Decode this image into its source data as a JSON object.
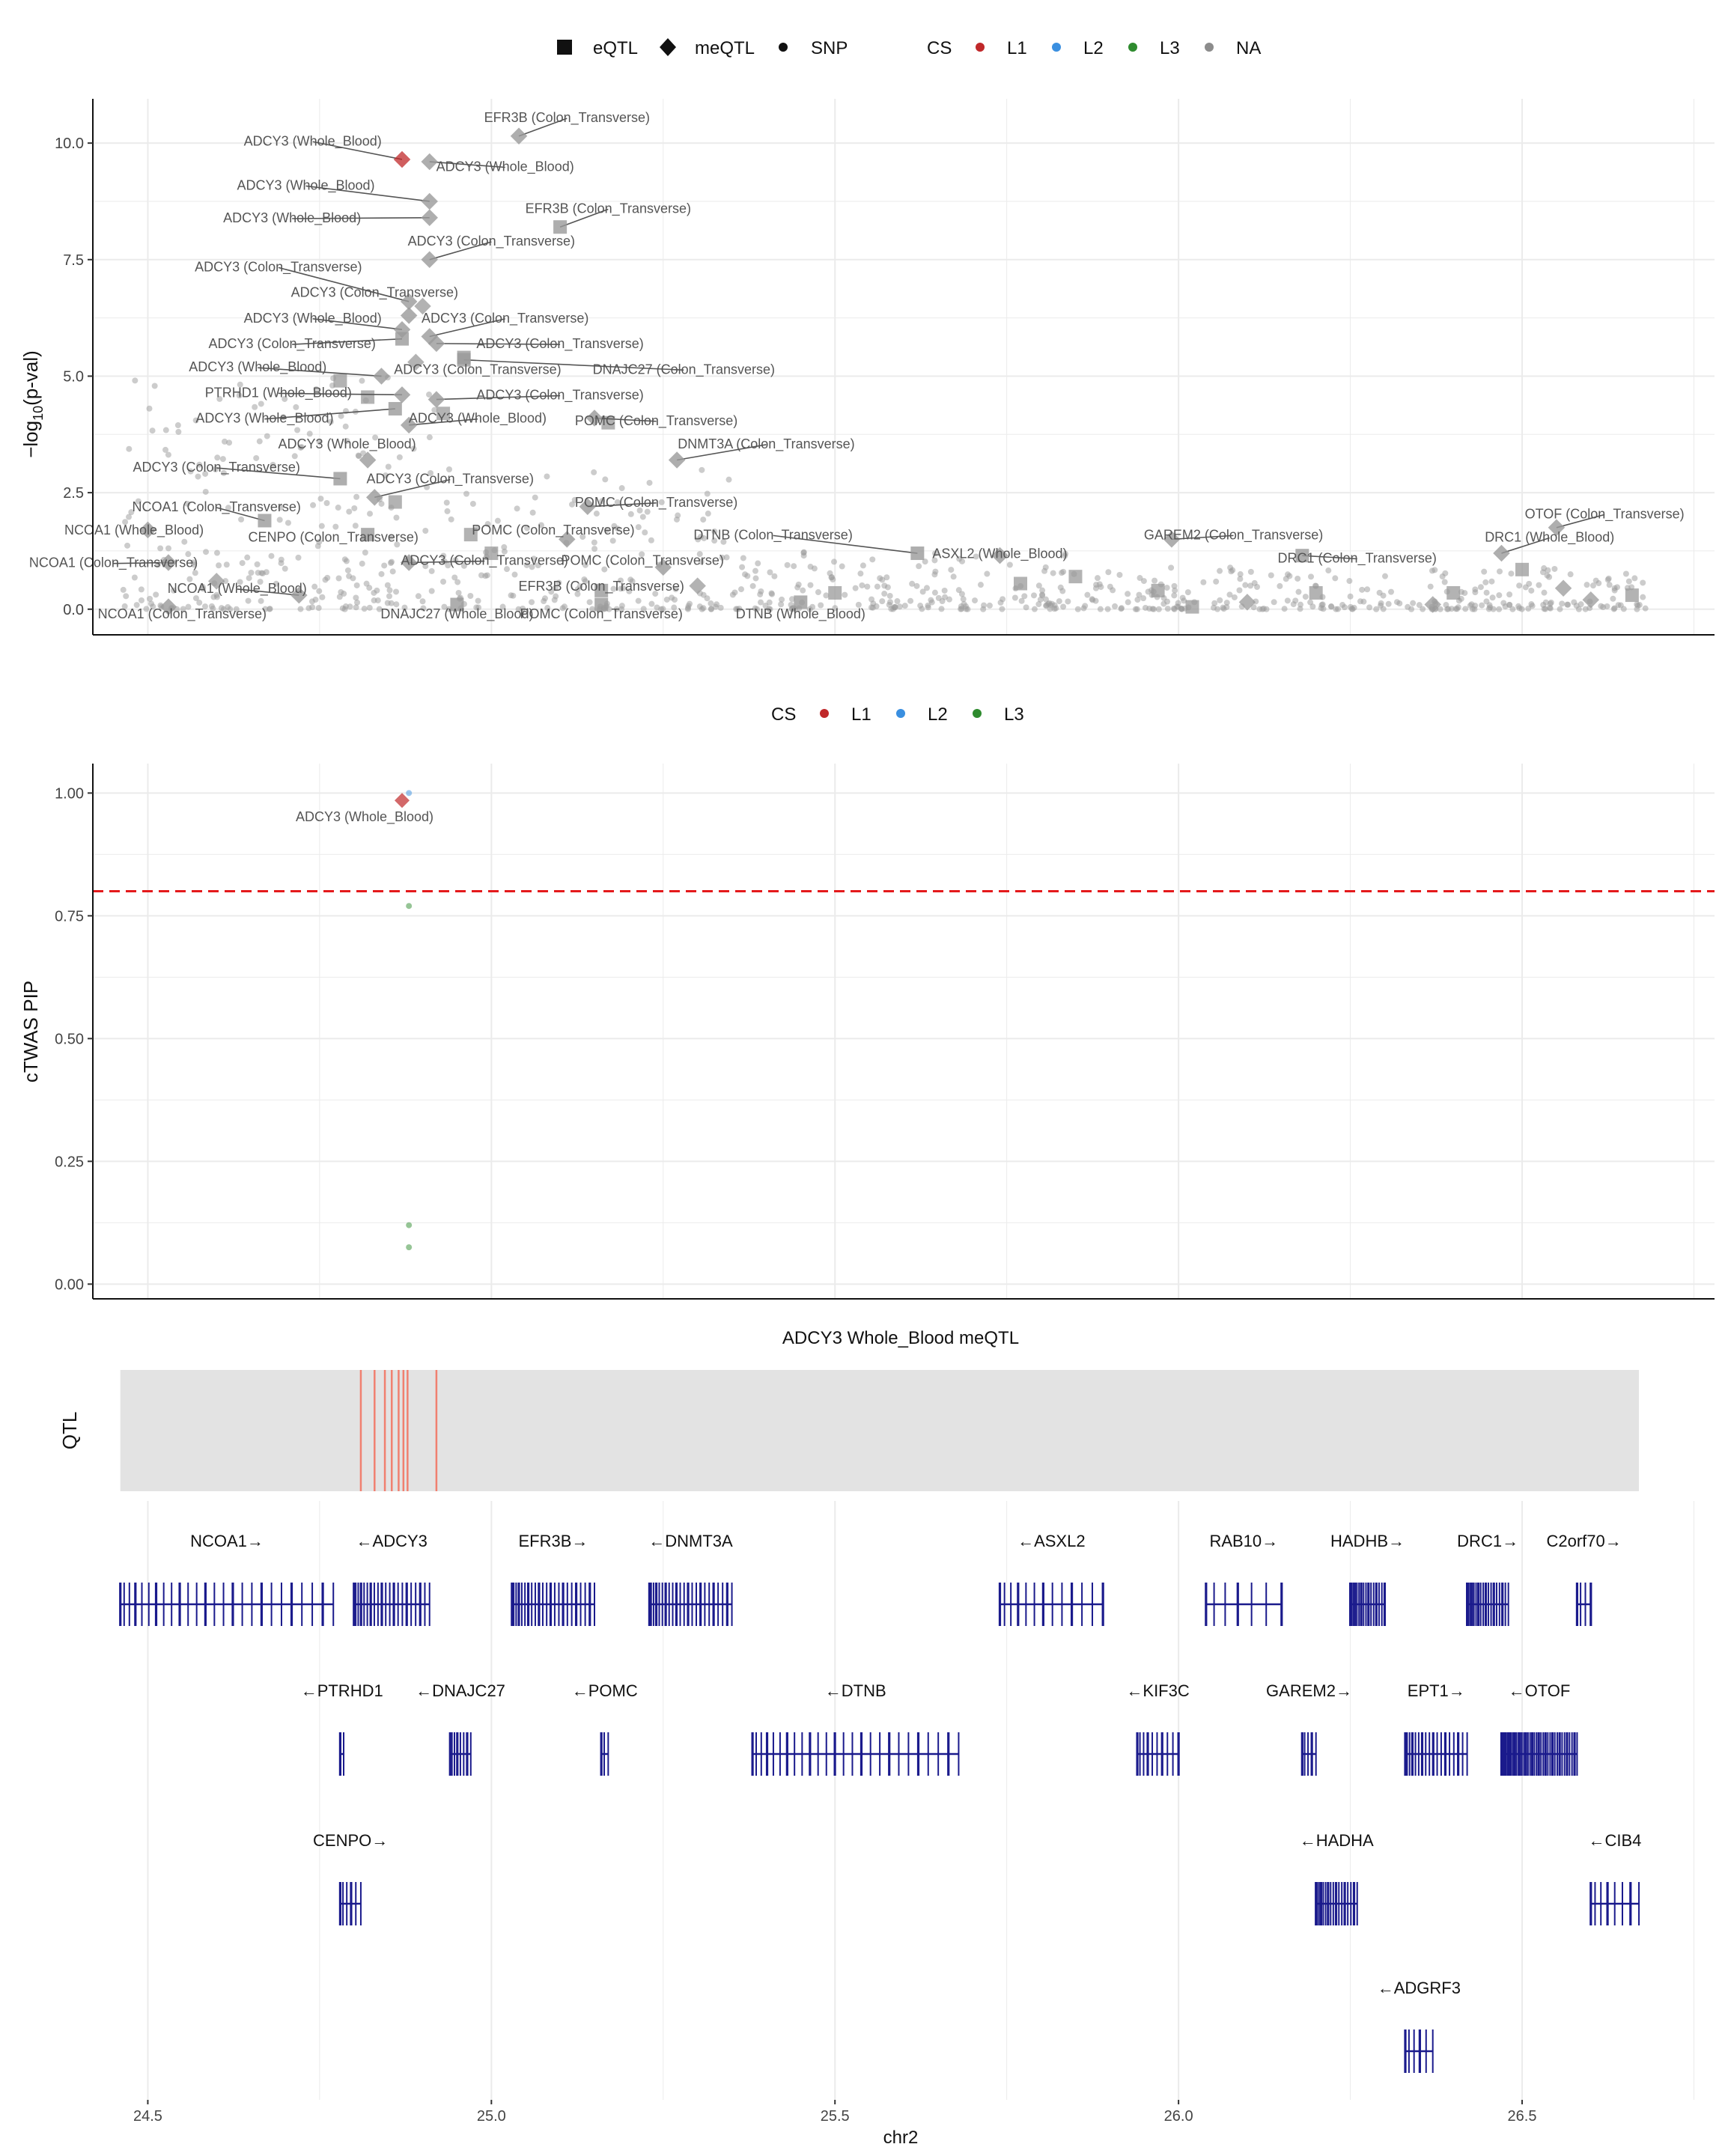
{
  "legend_top": {
    "shape_title": "",
    "shapes": [
      {
        "label": "eQTL",
        "shape": "square"
      },
      {
        "label": "meQTL",
        "shape": "diamond"
      },
      {
        "label": "SNP",
        "shape": "circle"
      }
    ],
    "cs_title": "CS",
    "cs": [
      {
        "label": "L1",
        "color": "#C0282A"
      },
      {
        "label": "L2",
        "color": "#3A8FE0"
      },
      {
        "label": "L3",
        "color": "#2E8B2E"
      },
      {
        "label": "NA",
        "color": "#8C8C8C"
      }
    ]
  },
  "legend_mid": {
    "cs_title": "CS",
    "cs": [
      {
        "label": "L1",
        "color": "#C0282A"
      },
      {
        "label": "L2",
        "color": "#3A8FE0"
      },
      {
        "label": "L3",
        "color": "#2E8B2E"
      }
    ]
  },
  "colors": {
    "na": "#9A9A9A",
    "l1": "#C0282A",
    "l2": "#3A8FE0",
    "l3": "#2E8B2E",
    "gene": "#1A1A8C",
    "threshold": "#E41A1C",
    "qtl_bar": "#F08070",
    "qtl_bg": "#E3E3E3",
    "grid": "#EBEBEB"
  },
  "chart_data": [
    {
      "type": "scatter",
      "name": "gwas",
      "title": "",
      "xlabel": "",
      "ylabel": "−log10(p-val)",
      "ylabel_main": "−log",
      "ylabel_sub": "10",
      "ylabel_tail": "(p-val)",
      "xlim": [
        24.42,
        26.78
      ],
      "ylim": [
        -0.55,
        10.95
      ],
      "yticks": [
        0.0,
        2.5,
        5.0,
        7.5,
        10.0
      ],
      "ytick_labels": [
        "0.0",
        "2.5",
        "5.0",
        "7.5",
        "10.0"
      ],
      "background_snp_regions": [
        {
          "x0": 24.46,
          "x1": 24.95,
          "ymax": 5.0,
          "density": 240
        },
        {
          "x0": 24.95,
          "x1": 25.35,
          "ymax": 3.0,
          "density": 150
        },
        {
          "x0": 25.35,
          "x1": 25.85,
          "ymax": 1.3,
          "density": 180
        },
        {
          "x0": 25.85,
          "x1": 26.68,
          "ymax": 0.9,
          "density": 280
        }
      ],
      "labeled_points": [
        {
          "x": 24.87,
          "y": 9.65,
          "shape": "diamond",
          "cs": "L1",
          "label": "ADCY3 (Whole_Blood)",
          "lx": 24.74,
          "ly": 9.95
        },
        {
          "x": 25.04,
          "y": 10.15,
          "shape": "diamond",
          "cs": "NA",
          "label": "EFR3B (Colon_Transverse)",
          "lx": 25.11,
          "ly": 10.45
        },
        {
          "x": 24.91,
          "y": 9.6,
          "shape": "diamond",
          "cs": "NA",
          "label": "ADCY3 (Whole_Blood)",
          "lx": 25.02,
          "ly": 9.4
        },
        {
          "x": 24.91,
          "y": 8.75,
          "shape": "diamond",
          "cs": "NA",
          "label": "ADCY3 (Whole_Blood)",
          "lx": 24.73,
          "ly": 9.0
        },
        {
          "x": 25.1,
          "y": 8.2,
          "shape": "square",
          "cs": "NA",
          "label": "EFR3B (Colon_Transverse)",
          "lx": 25.17,
          "ly": 8.5
        },
        {
          "x": 24.91,
          "y": 8.4,
          "shape": "diamond",
          "cs": "NA",
          "label": "ADCY3 (Whole_Blood)",
          "lx": 24.71,
          "ly": 8.3
        },
        {
          "x": 24.91,
          "y": 7.5,
          "shape": "diamond",
          "cs": "NA",
          "label": "ADCY3 (Colon_Transverse)",
          "lx": 25.0,
          "ly": 7.8
        },
        {
          "x": 24.88,
          "y": 6.6,
          "shape": "diamond",
          "cs": "NA",
          "label": "ADCY3 (Colon_Transverse)",
          "lx": 24.69,
          "ly": 7.25
        },
        {
          "x": 24.88,
          "y": 6.3,
          "shape": "diamond",
          "cs": "NA",
          "label": "ADCY3 (Colon_Transverse)",
          "lx": 24.83,
          "ly": 6.7
        },
        {
          "x": 24.87,
          "y": 6.0,
          "shape": "diamond",
          "cs": "NA",
          "label": "ADCY3 (Whole_Blood)",
          "lx": 24.74,
          "ly": 6.15
        },
        {
          "x": 24.91,
          "y": 5.85,
          "shape": "diamond",
          "cs": "NA",
          "label": "ADCY3 (Colon_Transverse)",
          "lx": 25.02,
          "ly": 6.15
        },
        {
          "x": 24.87,
          "y": 5.8,
          "shape": "square",
          "cs": "NA",
          "label": "ADCY3 (Colon_Transverse)",
          "lx": 24.71,
          "ly": 5.6
        },
        {
          "x": 24.92,
          "y": 5.7,
          "shape": "diamond",
          "cs": "NA",
          "label": "ADCY3 (Colon_Transverse)",
          "lx": 25.1,
          "ly": 5.6
        },
        {
          "x": 24.84,
          "y": 5.0,
          "shape": "diamond",
          "cs": "NA",
          "label": "ADCY3 (Whole_Blood)",
          "lx": 24.66,
          "ly": 5.1
        },
        {
          "x": 24.96,
          "y": 5.4,
          "shape": "square",
          "cs": "NA",
          "label": "ADCY3 (Colon_Transverse)",
          "lx": 24.98,
          "ly": 5.05
        },
        {
          "x": 24.96,
          "y": 5.35,
          "shape": "square",
          "cs": "NA",
          "label": "DNAJC27 (Colon_Transverse)",
          "lx": 25.28,
          "ly": 5.05
        },
        {
          "x": 24.87,
          "y": 4.6,
          "shape": "diamond",
          "cs": "NA",
          "label": "PTRHD1 (Whole_Blood)",
          "lx": 24.69,
          "ly": 4.55
        },
        {
          "x": 24.92,
          "y": 4.5,
          "shape": "diamond",
          "cs": "NA",
          "label": "ADCY3 (Colon_Transverse)",
          "lx": 25.1,
          "ly": 4.5
        },
        {
          "x": 24.86,
          "y": 4.3,
          "shape": "square",
          "cs": "NA",
          "label": "ADCY3 (Whole_Blood)",
          "lx": 24.67,
          "ly": 4.0
        },
        {
          "x": 24.88,
          "y": 3.95,
          "shape": "diamond",
          "cs": "NA",
          "label": "ADCY3 (Whole_Blood)",
          "lx": 24.98,
          "ly": 4.0
        },
        {
          "x": 25.15,
          "y": 4.1,
          "shape": "diamond",
          "cs": "NA",
          "label": "POMC (Colon_Transverse)",
          "lx": 25.24,
          "ly": 3.95
        },
        {
          "x": 24.82,
          "y": 3.2,
          "shape": "diamond",
          "cs": "NA",
          "label": "ADCY3 (Whole_Blood)",
          "lx": 24.79,
          "ly": 3.45
        },
        {
          "x": 25.27,
          "y": 3.2,
          "shape": "diamond",
          "cs": "NA",
          "label": "DNMT3A (Colon_Transverse)",
          "lx": 25.4,
          "ly": 3.45
        },
        {
          "x": 24.78,
          "y": 2.8,
          "shape": "square",
          "cs": "NA",
          "label": "ADCY3 (Colon_Transverse)",
          "lx": 24.6,
          "ly": 2.95
        },
        {
          "x": 24.83,
          "y": 2.4,
          "shape": "diamond",
          "cs": "NA",
          "label": "ADCY3 (Colon_Transverse)",
          "lx": 24.94,
          "ly": 2.7
        },
        {
          "x": 25.14,
          "y": 2.2,
          "shape": "diamond",
          "cs": "NA",
          "label": "POMC (Colon_Transverse)",
          "lx": 25.24,
          "ly": 2.2
        },
        {
          "x": 24.67,
          "y": 1.9,
          "shape": "square",
          "cs": "NA",
          "label": "NCOA1 (Colon_Transverse)",
          "lx": 24.6,
          "ly": 2.1
        },
        {
          "x": 26.55,
          "y": 1.75,
          "shape": "diamond",
          "cs": "NA",
          "label": "OTOF (Colon_Transverse)",
          "lx": 26.62,
          "ly": 1.95
        },
        {
          "x": 24.5,
          "y": 1.7,
          "shape": "diamond",
          "cs": "NA",
          "label": "NCOA1 (Whole_Blood)",
          "lx": 24.48,
          "ly": 1.6
        },
        {
          "x": 24.82,
          "y": 1.6,
          "shape": "square",
          "cs": "NA",
          "label": "CENPO (Colon_Transverse)",
          "lx": 24.77,
          "ly": 1.45
        },
        {
          "x": 25.11,
          "y": 1.5,
          "shape": "diamond",
          "cs": "NA",
          "label": "POMC (Colon_Transverse)",
          "lx": 25.09,
          "ly": 1.6
        },
        {
          "x": 25.62,
          "y": 1.2,
          "shape": "square",
          "cs": "NA",
          "label": "DTNB (Colon_Transverse)",
          "lx": 25.41,
          "ly": 1.5
        },
        {
          "x": 26.47,
          "y": 1.2,
          "shape": "diamond",
          "cs": "NA",
          "label": "DRC1 (Whole_Blood)",
          "lx": 26.54,
          "ly": 1.45
        },
        {
          "x": 25.99,
          "y": 1.5,
          "shape": "diamond",
          "cs": "NA",
          "label": "GAREM2 (Colon_Transverse)",
          "lx": 26.08,
          "ly": 1.5
        },
        {
          "x": 26.18,
          "y": 1.15,
          "shape": "square",
          "cs": "NA",
          "label": "DRC1 (Colon_Transverse)",
          "lx": 26.26,
          "ly": 1.0
        },
        {
          "x": 25.74,
          "y": 1.15,
          "shape": "diamond",
          "cs": "NA",
          "label": "ASXL2 (Whole_Blood)",
          "lx": 25.74,
          "ly": 1.1
        },
        {
          "x": 24.53,
          "y": 1.0,
          "shape": "diamond",
          "cs": "NA",
          "label": "NCOA1 (Colon_Transverse)",
          "lx": 24.45,
          "ly": 0.9
        },
        {
          "x": 24.88,
          "y": 1.0,
          "shape": "diamond",
          "cs": "NA",
          "label": "ADCY3 (Colon_Transverse)",
          "lx": 24.99,
          "ly": 0.95
        },
        {
          "x": 25.25,
          "y": 0.9,
          "shape": "diamond",
          "cs": "NA",
          "label": "POMC (Colon_Transverse)",
          "lx": 25.22,
          "ly": 0.95
        },
        {
          "x": 24.72,
          "y": 0.3,
          "shape": "diamond",
          "cs": "NA",
          "label": "NCOA1 (Whole_Blood)",
          "lx": 24.63,
          "ly": 0.35
        },
        {
          "x": 25.16,
          "y": 0.4,
          "shape": "square",
          "cs": "NA",
          "label": "EFR3B (Colon_Transverse)",
          "lx": 25.16,
          "ly": 0.4
        },
        {
          "x": 24.53,
          "y": 0.05,
          "shape": "diamond",
          "cs": "NA",
          "label": "NCOA1 (Colon_Transverse)",
          "lx": 24.55,
          "ly": -0.2
        },
        {
          "x": 24.95,
          "y": 0.1,
          "shape": "square",
          "cs": "NA",
          "label": "DNAJC27 (Whole_Blood)",
          "lx": 24.95,
          "ly": -0.2
        },
        {
          "x": 25.16,
          "y": 0.1,
          "shape": "square",
          "cs": "NA",
          "label": "POMC (Colon_Transverse)",
          "lx": 25.16,
          "ly": -0.2
        },
        {
          "x": 25.45,
          "y": 0.15,
          "shape": "square",
          "cs": "NA",
          "label": "DTNB (Whole_Blood)",
          "lx": 25.45,
          "ly": -0.2
        }
      ],
      "extra_shapes": [
        {
          "x": 24.78,
          "y": 4.9,
          "shape": "square"
        },
        {
          "x": 24.82,
          "y": 4.55,
          "shape": "square"
        },
        {
          "x": 24.93,
          "y": 4.2,
          "shape": "square"
        },
        {
          "x": 25.17,
          "y": 4.0,
          "shape": "square"
        },
        {
          "x": 24.89,
          "y": 5.3,
          "shape": "diamond"
        },
        {
          "x": 24.9,
          "y": 6.5,
          "shape": "diamond"
        },
        {
          "x": 24.86,
          "y": 2.3,
          "shape": "square"
        },
        {
          "x": 24.97,
          "y": 1.6,
          "shape": "square"
        },
        {
          "x": 25.0,
          "y": 1.2,
          "shape": "square"
        },
        {
          "x": 25.5,
          "y": 0.35,
          "shape": "square"
        },
        {
          "x": 25.77,
          "y": 0.55,
          "shape": "square"
        },
        {
          "x": 25.85,
          "y": 0.7,
          "shape": "square"
        },
        {
          "x": 26.02,
          "y": 0.05,
          "shape": "square"
        },
        {
          "x": 26.2,
          "y": 0.35,
          "shape": "square"
        },
        {
          "x": 26.4,
          "y": 0.35,
          "shape": "square"
        },
        {
          "x": 26.5,
          "y": 0.85,
          "shape": "square"
        },
        {
          "x": 26.6,
          "y": 0.2,
          "shape": "diamond"
        },
        {
          "x": 26.66,
          "y": 0.3,
          "shape": "square"
        },
        {
          "x": 24.6,
          "y": 0.6,
          "shape": "diamond"
        },
        {
          "x": 25.3,
          "y": 0.5,
          "shape": "diamond"
        },
        {
          "x": 25.97,
          "y": 0.4,
          "shape": "square"
        },
        {
          "x": 26.1,
          "y": 0.15,
          "shape": "diamond"
        },
        {
          "x": 26.37,
          "y": 0.1,
          "shape": "diamond"
        },
        {
          "x": 26.56,
          "y": 0.45,
          "shape": "diamond"
        }
      ]
    },
    {
      "type": "scatter",
      "name": "pip",
      "title": "",
      "xlabel": "",
      "ylabel": "cTWAS PIP",
      "xlim": [
        24.42,
        26.78
      ],
      "ylim": [
        -0.03,
        1.06
      ],
      "yticks": [
        0.0,
        0.25,
        0.5,
        0.75,
        1.0
      ],
      "ytick_labels": [
        "0.00",
        "0.25",
        "0.50",
        "0.75",
        "1.00"
      ],
      "threshold": 0.8,
      "points": [
        {
          "x": 24.87,
          "y": 0.985,
          "shape": "diamond",
          "cs": "L1",
          "label": "ADCY3 (Whole_Blood)"
        },
        {
          "x": 24.88,
          "y": 1.0,
          "shape": "circle",
          "cs": "L2",
          "label": ""
        },
        {
          "x": 24.88,
          "y": 0.77,
          "shape": "circle",
          "cs": "L3",
          "label": ""
        },
        {
          "x": 24.88,
          "y": 0.12,
          "shape": "circle",
          "cs": "L3",
          "label": ""
        },
        {
          "x": 24.88,
          "y": 0.075,
          "shape": "circle",
          "cs": "L3",
          "label": ""
        }
      ]
    },
    {
      "type": "track",
      "name": "qtl",
      "title": "ADCY3 Whole_Blood meQTL",
      "ylabel": "QTL",
      "xlim": [
        24.42,
        26.78
      ],
      "range": [
        24.46,
        26.67
      ],
      "positions": [
        24.81,
        24.83,
        24.845,
        24.855,
        24.865,
        24.872,
        24.878,
        24.92
      ]
    },
    {
      "type": "genes",
      "name": "genes",
      "xlabel": "chr2",
      "xlim": [
        24.42,
        26.78
      ],
      "xticks": [
        24.5,
        25.0,
        25.5,
        26.0,
        26.5
      ],
      "xtick_labels": [
        "24.5",
        "25.0",
        "25.5",
        "26.0",
        "26.5"
      ],
      "genes": [
        {
          "name": "NCOA1",
          "label": "NCOA1→",
          "row": 0,
          "start": 24.46,
          "end": 24.77,
          "exons": 26
        },
        {
          "name": "ADCY3",
          "label": "←ADCY3",
          "row": 0,
          "start": 24.8,
          "end": 24.91,
          "exons": 21
        },
        {
          "name": "EFR3B",
          "label": "EFR3B→",
          "row": 0,
          "start": 25.03,
          "end": 25.15,
          "exons": 23
        },
        {
          "name": "DNMT3A",
          "label": "←DNMT3A",
          "row": 0,
          "start": 25.23,
          "end": 25.35,
          "exons": 23
        },
        {
          "name": "ASXL2",
          "label": "←ASXL2",
          "row": 0,
          "start": 25.74,
          "end": 25.89,
          "exons": 13
        },
        {
          "name": "RAB10",
          "label": "RAB10→",
          "row": 0,
          "start": 26.04,
          "end": 26.15,
          "exons": 7
        },
        {
          "name": "HADHB",
          "label": "HADHB→",
          "row": 0,
          "start": 26.25,
          "end": 26.3,
          "exons": 16
        },
        {
          "name": "DRC1",
          "label": "DRC1→",
          "row": 0,
          "start": 26.42,
          "end": 26.48,
          "exons": 18
        },
        {
          "name": "C2orf70",
          "label": "C2orf70→",
          "row": 0,
          "start": 26.58,
          "end": 26.6,
          "exons": 4
        },
        {
          "name": "PTRHD1",
          "label": "←PTRHD1",
          "row": 1,
          "start": 24.78,
          "end": 24.785,
          "exons": 2
        },
        {
          "name": "DNAJC27",
          "label": "←DNAJC27",
          "row": 1,
          "start": 24.94,
          "end": 24.97,
          "exons": 8
        },
        {
          "name": "POMC",
          "label": "←POMC",
          "row": 1,
          "start": 25.16,
          "end": 25.17,
          "exons": 3
        },
        {
          "name": "DTNB",
          "label": "←DTNB",
          "row": 1,
          "start": 25.38,
          "end": 25.68,
          "exons": 26
        },
        {
          "name": "KIF3C",
          "label": "←KIF3C",
          "row": 1,
          "start": 25.94,
          "end": 26.0,
          "exons": 10
        },
        {
          "name": "GAREM2",
          "label": "GAREM2→",
          "row": 1,
          "start": 26.18,
          "end": 26.2,
          "exons": 5
        },
        {
          "name": "EPT1",
          "label": "EPT1→",
          "row": 1,
          "start": 26.33,
          "end": 26.42,
          "exons": 18
        },
        {
          "name": "OTOF",
          "label": "←OTOF",
          "row": 1,
          "start": 26.47,
          "end": 26.58,
          "exons": 38
        },
        {
          "name": "CENPO",
          "label": "CENPO→",
          "row": 2,
          "start": 24.78,
          "end": 24.81,
          "exons": 6
        },
        {
          "name": "HADHA",
          "label": "←HADHA",
          "row": 2,
          "start": 26.2,
          "end": 26.26,
          "exons": 17
        },
        {
          "name": "CIB4",
          "label": "←CIB4",
          "row": 2,
          "start": 26.6,
          "end": 26.67,
          "exons": 8
        },
        {
          "name": "ADGRF3",
          "label": "←ADGRF3",
          "row": 3,
          "start": 26.33,
          "end": 26.37,
          "exons": 6
        }
      ]
    }
  ]
}
